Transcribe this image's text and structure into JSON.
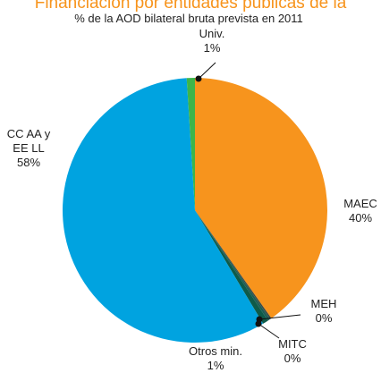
{
  "chart_data": {
    "type": "pie",
    "title": "Financiación por entidades públicas de la",
    "subtitle": "% de la AOD bilateral bruta prevista en 2011",
    "categories": [
      "MAEC",
      "MEH",
      "MITC",
      "Otros min.",
      "CC AA y EE LL",
      "Univ."
    ],
    "values": [
      40.2,
      0.2,
      0.3,
      0.7,
      57.6,
      1.0
    ],
    "value_labels": [
      "40%",
      "0%",
      "0%",
      "1%",
      "58%",
      "1%"
    ],
    "colors": [
      "#f7941d",
      "#3d4a45",
      "#1d5e55",
      "#0e5a48",
      "#00a3e0",
      "#3db54a"
    ]
  }
}
